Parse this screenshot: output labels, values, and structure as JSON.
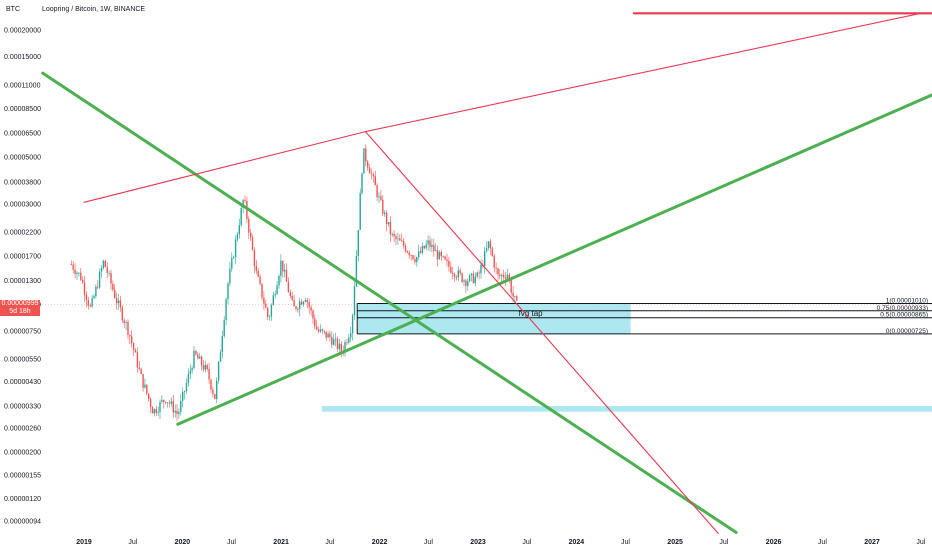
{
  "header": {
    "symbol": "Loopring / Bitcoin, 1W, BINANCE",
    "currency": "BTC"
  },
  "price_tag": {
    "price": "0.00000999",
    "countdown": "5d 18h"
  },
  "colors": {
    "up": "#26a69a",
    "down": "#ef5350",
    "green_line": "#4caf50",
    "red_line": "#e53950",
    "zone": "#9fe3ec",
    "zone_border": "#131722"
  },
  "chart_data": {
    "type": "candlestick",
    "title": "Loopring / Bitcoin, 1W, BINANCE",
    "y_scale": "log",
    "y_ticks": [
      "0.00020000",
      "0.00015000",
      "0.00011000",
      "0.00008500",
      "0.00006500",
      "0.00005000",
      "0.00003800",
      "0.00003000",
      "0.00002200",
      "0.00001700",
      "0.00001300",
      "0.00000999",
      "0.00000750",
      "0.00000550",
      "0.00000430",
      "0.00000330",
      "0.00000260",
      "0.00000200",
      "0.00000155",
      "0.00000120",
      "0.00000094"
    ],
    "x_ticks": [
      "2019",
      "Jul",
      "2020",
      "Jul",
      "2021",
      "Jul",
      "2022",
      "Jul",
      "2023",
      "Jul",
      "2024",
      "Jul",
      "2025",
      "Jul",
      "2026",
      "Jul",
      "2027",
      "Jul"
    ],
    "price_path": [
      [
        "2018-11-15",
        1.55e-05
      ],
      [
        "2018-12-20",
        1.35e-05
      ],
      [
        "2019-01-25",
        9.5e-06
      ],
      [
        "2019-03-15",
        1.6e-05
      ],
      [
        "2019-05-01",
        1.05e-05
      ],
      [
        "2019-06-15",
        7.5e-06
      ],
      [
        "2019-08-01",
        4.5e-06
      ],
      [
        "2019-09-15",
        3.1e-06
      ],
      [
        "2019-11-01",
        3.6e-06
      ],
      [
        "2019-12-15",
        3e-06
      ],
      [
        "2020-02-15",
        5.8e-06
      ],
      [
        "2020-04-01",
        4.8e-06
      ],
      [
        "2020-05-01",
        3.6e-06
      ],
      [
        "2020-06-15",
        1.2e-05
      ],
      [
        "2020-08-15",
        3.2e-05
      ],
      [
        "2020-10-01",
        1.4e-05
      ],
      [
        "2020-11-15",
        8.5e-06
      ],
      [
        "2021-01-01",
        1.6e-05
      ],
      [
        "2021-02-15",
        9.5e-06
      ],
      [
        "2021-04-01",
        1.1e-05
      ],
      [
        "2021-05-15",
        7.5e-06
      ],
      [
        "2021-07-01",
        7e-06
      ],
      [
        "2021-08-15",
        6e-06
      ],
      [
        "2021-09-20",
        8e-06
      ],
      [
        "2021-11-01",
        5.3e-05
      ],
      [
        "2021-11-20",
        4.6e-05
      ],
      [
        "2022-01-01",
        3.1e-05
      ],
      [
        "2022-02-15",
        2.1e-05
      ],
      [
        "2022-04-01",
        1.9e-05
      ],
      [
        "2022-05-15",
        1.65e-05
      ],
      [
        "2022-07-01",
        1.95e-05
      ],
      [
        "2022-08-15",
        1.65e-05
      ],
      [
        "2022-10-01",
        1.45e-05
      ],
      [
        "2022-11-15",
        1.3e-05
      ],
      [
        "2023-01-01",
        1.35e-05
      ],
      [
        "2023-02-10",
        1.95e-05
      ],
      [
        "2023-03-15",
        1.35e-05
      ],
      [
        "2023-04-20",
        1.4e-05
      ],
      [
        "2023-05-10",
        1.1e-05
      ],
      [
        "2023-05-25",
        9.9e-06
      ]
    ],
    "trendlines": [
      {
        "color": "green",
        "from": [
          "2018-08-01",
          0.000125
        ],
        "to": [
          "2025-08-15",
          8.3e-07
        ]
      },
      {
        "color": "green",
        "from": [
          "2019-12-15",
          2.7e-06
        ],
        "to": [
          "2027-10-01",
          0.000105
        ]
      },
      {
        "color": "red",
        "from": [
          "2019-01-01",
          3.05e-05
        ],
        "to": [
          "2021-11-10",
          6.6e-05
        ]
      },
      {
        "color": "red",
        "from": [
          "2021-11-10",
          6.6e-05
        ],
        "to": [
          "2027-07-01",
          0.00024
        ]
      },
      {
        "color": "red",
        "from": [
          "2021-11-10",
          6.6e-05
        ],
        "to": [
          "2025-06-10",
          8.2e-07
        ]
      },
      {
        "color": "red",
        "from": [
          "2024-08-01",
          0.00024
        ],
        "to": [
          "2027-12-31",
          0.00024
        ]
      }
    ],
    "zones": [
      {
        "label": "fvg tap",
        "x_from": "2021-10-10",
        "x_to": "2024-07-20",
        "y_from": 7.25e-06,
        "y_to": 1.01e-05
      },
      {
        "label": "",
        "x_from": "2021-06-01",
        "x_to": "2027-12-31",
        "y_from": 3.1e-06,
        "y_to": 3.3e-06
      }
    ],
    "fib_levels": [
      {
        "ratio": "1",
        "price": 1.01e-05,
        "label": "1(0.00001010)"
      },
      {
        "ratio": "0.75",
        "price": 9.33e-06,
        "label": "0.75(0.00000933)"
      },
      {
        "ratio": "0.5",
        "price": 8.65e-06,
        "label": "0.5(0.00000865)"
      },
      {
        "ratio": "0",
        "price": 7.25e-06,
        "label": "0(0.00000725)"
      }
    ]
  }
}
